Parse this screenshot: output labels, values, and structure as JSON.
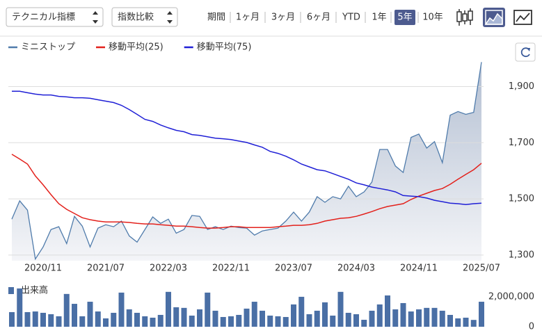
{
  "toolbar": {
    "indicator": "テクニカル指標",
    "compare": "指数比較",
    "period_label": "期間",
    "periods": [
      "1ヶ月",
      "3ヶ月",
      "6ヶ月",
      "YTD",
      "1年",
      "5年",
      "10年"
    ],
    "selected_period_index": 5
  },
  "chart_data": [
    {
      "type": "line",
      "categories": [
        null,
        null,
        null,
        null,
        "2020/11",
        null,
        null,
        null,
        null,
        null,
        null,
        null,
        "2021/07",
        null,
        null,
        null,
        null,
        null,
        null,
        null,
        "2022/03",
        null,
        null,
        null,
        null,
        null,
        null,
        null,
        "2022/11",
        null,
        null,
        null,
        null,
        null,
        null,
        null,
        "2023/07",
        null,
        null,
        null,
        null,
        null,
        null,
        null,
        "2024/03",
        null,
        null,
        null,
        null,
        null,
        null,
        null,
        "2024/11",
        null,
        null,
        null,
        null,
        null,
        null,
        null,
        "2025/07"
      ],
      "series": [
        {
          "name": "ミニストップ",
          "color": "#4f7bab",
          "area": true,
          "values": [
            1428,
            1493,
            1460,
            1286,
            1329,
            1391,
            1401,
            1341,
            1438,
            1403,
            1329,
            1396,
            1408,
            1401,
            1421,
            1368,
            1346,
            1391,
            1436,
            1413,
            1428,
            1378,
            1391,
            1441,
            1438,
            1391,
            1401,
            1391,
            1403,
            1398,
            1396,
            1371,
            1386,
            1391,
            1396,
            1421,
            1453,
            1421,
            1453,
            1508,
            1488,
            1508,
            1500,
            1545,
            1508,
            1525,
            1560,
            1676,
            1676,
            1617,
            1594,
            1719,
            1731,
            1681,
            1704,
            1629,
            1798,
            1811,
            1801,
            1808,
            1987
          ]
        },
        {
          "name": "移動平均(25)",
          "color": "#e3201b",
          "values": [
            1659,
            1642,
            1624,
            1582,
            1550,
            1515,
            1483,
            1463,
            1448,
            1433,
            1426,
            1421,
            1418,
            1418,
            1418,
            1416,
            1413,
            1411,
            1411,
            1408,
            1406,
            1403,
            1403,
            1401,
            1398,
            1396,
            1396,
            1398,
            1401,
            1401,
            1398,
            1398,
            1398,
            1398,
            1401,
            1403,
            1406,
            1406,
            1408,
            1413,
            1421,
            1426,
            1431,
            1433,
            1438,
            1446,
            1455,
            1465,
            1473,
            1478,
            1483,
            1498,
            1510,
            1520,
            1530,
            1537,
            1552,
            1570,
            1587,
            1604,
            1627
          ]
        },
        {
          "name": "移動平均(75)",
          "color": "#1f1fd6",
          "values": [
            1883,
            1883,
            1878,
            1873,
            1870,
            1870,
            1865,
            1863,
            1860,
            1860,
            1858,
            1853,
            1848,
            1843,
            1833,
            1818,
            1801,
            1783,
            1776,
            1763,
            1753,
            1744,
            1739,
            1729,
            1726,
            1721,
            1716,
            1714,
            1711,
            1706,
            1701,
            1692,
            1684,
            1669,
            1662,
            1652,
            1639,
            1624,
            1614,
            1604,
            1600,
            1590,
            1580,
            1570,
            1557,
            1550,
            1542,
            1537,
            1532,
            1525,
            1512,
            1510,
            1508,
            1503,
            1495,
            1490,
            1485,
            1483,
            1480,
            1483,
            1485
          ]
        }
      ],
      "ylim": [
        1280,
        2015
      ],
      "yticks": [
        {
          "value": 1300,
          "label": "1,300"
        },
        {
          "value": 1500,
          "label": "1,500"
        },
        {
          "value": 1700,
          "label": "1,700"
        },
        {
          "value": 1900,
          "label": "1,900"
        }
      ],
      "grid": true
    },
    {
      "type": "bar",
      "series": [
        {
          "name": "出来高",
          "color": "#4a6fa5",
          "values": [
            977000,
            2558000,
            977000,
            1020000,
            930000,
            837000,
            698000,
            2190000,
            1530000,
            698000,
            1670000,
            1020000,
            558000,
            930000,
            2280000,
            1160000,
            930000,
            698000,
            605000,
            791000,
            2330000,
            1300000,
            1260000,
            744000,
            1160000,
            2280000,
            1070000,
            651000,
            698000,
            791000,
            1210000,
            1670000,
            1070000,
            744000,
            698000,
            651000,
            1490000,
            2000000,
            837000,
            1070000,
            1630000,
            744000,
            2330000,
            930000,
            837000,
            465000,
            1070000,
            1490000,
            2090000,
            1160000,
            1580000,
            1020000,
            1160000,
            1260000,
            1260000,
            1070000,
            791000,
            558000,
            605000,
            456000,
            1670000
          ]
        }
      ],
      "ylim": [
        0,
        2600000
      ],
      "yticks": [
        0,
        {
          "value": 2000000,
          "label": "2,000,000"
        }
      ],
      "grid": false
    }
  ]
}
